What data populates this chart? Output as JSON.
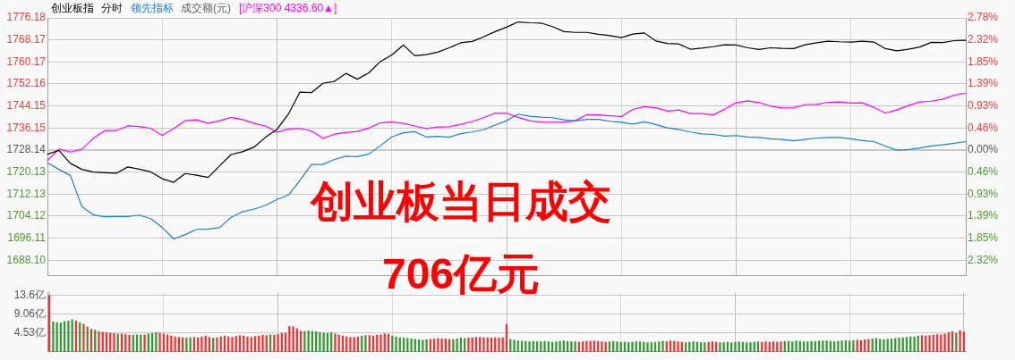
{
  "chart_data": [
    {
      "type": "line",
      "subtitle": "分时",
      "grid": true,
      "tick_labels": "y",
      "annotations": [
        "成交额(元)",
        "创业板当日成交",
        "706亿元"
      ],
      "categories": [
        null,
        null,
        null,
        null,
        null,
        null,
        null,
        null,
        null,
        null,
        null,
        null,
        null,
        null,
        null,
        null,
        null,
        null,
        null,
        null,
        null,
        null,
        null,
        null,
        null,
        null,
        null,
        null,
        null,
        null,
        null,
        null,
        null,
        null,
        null,
        null,
        null,
        null,
        null,
        null,
        null,
        null,
        null,
        null,
        null,
        null,
        null,
        null,
        null,
        null,
        null,
        null,
        null,
        null,
        null,
        null,
        null,
        null,
        null,
        null,
        null,
        null,
        null,
        null,
        null,
        null,
        null,
        null,
        null,
        null,
        null,
        null,
        null,
        null,
        null,
        null,
        null,
        null,
        null,
        null,
        null
      ],
      "ylim": [
        1682.4,
        1776.18
      ],
      "yticks": [
        1776.18,
        1768.17,
        1760.17,
        1752.16,
        1744.15,
        1736.15,
        1728.14,
        1720.13,
        1712.13,
        1704.12,
        1696.11,
        {
          "value": 1688.1,
          "label": "1688.10"
        }
      ],
      "y2lim": [
        -2.65,
        2.78
      ],
      "y2ticks": [
        {
          "value": 2.78,
          "label": "2.78%"
        },
        {
          "value": 2.32,
          "label": "2.32%"
        },
        {
          "value": 1.85,
          "label": "1.85%"
        },
        {
          "value": 1.39,
          "label": "1.39%"
        },
        {
          "value": 0.93,
          "label": "0.93%"
        },
        {
          "value": 0.46,
          "label": "0.46%"
        },
        {
          "value": 0,
          "label": "0.00%"
        },
        {
          "value": -0.46,
          "label": "0.46%"
        },
        {
          "value": -0.93,
          "label": "0.93%"
        },
        {
          "value": -1.39,
          "label": "1.39%"
        },
        {
          "value": -1.85,
          "label": "1.85%"
        },
        {
          "value": -2.32,
          "label": "2.32%"
        }
      ],
      "series": [
        {
          "name": "创业板指",
          "color": "#000000",
          "values": [
            1726.6,
            1728.0,
            1723.3,
            1721.1,
            1720.1,
            1719.9,
            1719.7,
            1722.0,
            1721.2,
            1720.2,
            1717.7,
            1716.4,
            1719.6,
            1719.0,
            1718.2,
            1722.4,
            1726.5,
            1727.5,
            1729.2,
            1732.8,
            1735.6,
            1741.3,
            1749.2,
            1749.0,
            1752.4,
            1753.1,
            1756.0,
            1753.9,
            1756.2,
            1760.3,
            1762.7,
            1766.3,
            1762.4,
            1762.8,
            1763.7,
            1765.3,
            1767.1,
            1767.6,
            1769.3,
            1771.2,
            1772.8,
            1774.7,
            1774.4,
            1774.3,
            1773.0,
            1771.2,
            1770.9,
            1770.9,
            1770.2,
            1769.7,
            1769.0,
            1770.3,
            1770.7,
            1767.8,
            1766.9,
            1766.7,
            1764.8,
            1765.2,
            1765.7,
            1766.4,
            1766.3,
            1765.3,
            1764.7,
            1765.3,
            1765.1,
            1765.0,
            1766.4,
            1767.1,
            1767.7,
            1767.5,
            1767.4,
            1767.7,
            1767.4,
            1765.0,
            1764.2,
            1764.8,
            1765.6,
            1767.3,
            1767.2,
            1767.9,
            1768.0
          ]
        },
        {
          "name": "领先指标",
          "color": "#1a7fd4",
          "values": [
            1723.5,
            1721.1,
            1718.9,
            1707.6,
            1704.6,
            1703.9,
            1704.0,
            1704.0,
            1704.5,
            1703.2,
            1700.0,
            1695.8,
            1697.4,
            1699.3,
            1699.4,
            1699.9,
            1703.7,
            1705.7,
            1706.7,
            1708.0,
            1710.2,
            1711.8,
            1717.1,
            1722.9,
            1722.9,
            1724.7,
            1725.9,
            1725.7,
            1726.7,
            1729.7,
            1732.9,
            1734.4,
            1734.8,
            1732.9,
            1733.1,
            1732.8,
            1734.1,
            1734.7,
            1735.5,
            1737.2,
            1738.8,
            1741.2,
            1740.4,
            1740.1,
            1739.9,
            1739.1,
            1738.7,
            1739.3,
            1739.3,
            1738.6,
            1738.2,
            1737.6,
            1738.4,
            1737.4,
            1736.2,
            1735.6,
            1734.7,
            1734.0,
            1733.8,
            1733.2,
            1733.4,
            1732.9,
            1732.7,
            1732.2,
            1732.0,
            1731.5,
            1732.0,
            1732.5,
            1732.7,
            1732.7,
            1732.2,
            1731.6,
            1731.2,
            1729.6,
            1728.1,
            1728.3,
            1728.9,
            1729.6,
            1730.0,
            1730.6,
            1731.2
          ]
        },
        {
          "name": "[沪深300 4336.60▲]",
          "color": "#ff00ff",
          "values": [
            1724.3,
            1728.5,
            1727.4,
            1728.4,
            1732.4,
            1735.2,
            1735.2,
            1736.9,
            1736.7,
            1736.0,
            1733.5,
            1735.9,
            1738.8,
            1739.1,
            1737.8,
            1738.8,
            1740.0,
            1739.2,
            1737.8,
            1736.9,
            1734.6,
            1735.8,
            1736.0,
            1735.1,
            1732.4,
            1733.9,
            1734.5,
            1734.9,
            1736.1,
            1738.0,
            1738.3,
            1737.8,
            1736.9,
            1735.9,
            1736.5,
            1736.6,
            1737.5,
            1738.5,
            1739.9,
            1741.5,
            1741.5,
            1740.0,
            1738.8,
            1738.3,
            1738.2,
            1738.2,
            1738.8,
            1741.0,
            1740.9,
            1740.6,
            1740.3,
            1742.9,
            1743.9,
            1743.5,
            1742.3,
            1742.7,
            1741.4,
            1741.4,
            1740.9,
            1743.0,
            1745.3,
            1746.0,
            1745.4,
            1744.1,
            1743.4,
            1743.5,
            1744.6,
            1744.7,
            1745.5,
            1745.6,
            1745.2,
            1745.3,
            1743.6,
            1741.6,
            1742.7,
            1744.3,
            1745.6,
            1745.9,
            1746.6,
            1748.1,
            1748.8
          ]
        }
      ]
    },
    {
      "type": "bar",
      "grid": true,
      "tick_labels": "y",
      "categories": [
        null,
        null,
        null,
        null,
        null,
        null,
        null,
        null,
        null,
        null,
        null,
        null,
        null,
        null,
        null,
        null,
        null,
        null,
        null,
        null,
        null,
        null,
        null,
        null,
        null,
        null,
        null,
        null,
        null,
        null,
        null,
        null,
        null,
        null,
        null,
        null,
        null,
        null,
        null,
        null,
        null,
        null,
        null,
        null,
        null,
        null,
        null,
        null,
        null,
        null,
        null,
        null,
        null,
        null,
        null,
        null,
        null,
        null,
        null,
        null,
        null,
        null,
        null,
        null,
        null,
        null,
        null,
        null,
        null,
        null,
        null,
        null,
        null,
        null,
        null,
        null,
        null,
        null,
        null,
        null,
        null,
        null,
        null,
        null,
        null,
        null,
        null,
        null,
        null,
        null,
        null,
        null,
        null,
        null,
        null,
        null,
        null,
        null,
        null,
        null,
        null,
        null,
        null,
        null,
        null,
        null,
        null,
        null,
        null,
        null,
        null,
        null,
        null,
        null,
        null,
        null,
        null,
        null,
        null,
        null,
        null,
        null,
        null,
        null,
        null,
        null,
        null,
        null,
        null,
        null,
        null,
        null,
        null,
        null,
        null,
        null,
        null,
        null,
        null,
        null,
        null,
        null,
        null,
        null,
        null,
        null,
        null,
        null,
        null,
        null,
        null,
        null,
        null,
        null,
        null,
        null,
        null,
        null,
        null,
        null,
        null,
        null,
        null,
        null,
        null,
        null,
        null,
        null,
        null,
        null,
        null,
        null,
        null,
        null,
        null,
        null,
        null,
        null,
        null,
        null,
        null,
        null,
        null,
        null,
        null,
        null,
        null,
        null,
        null,
        null,
        null,
        null,
        null,
        null,
        null,
        null,
        null,
        null,
        null,
        null,
        null,
        null,
        null,
        null,
        null,
        null,
        null,
        null,
        null,
        null,
        null,
        null,
        null,
        null,
        null,
        null,
        null,
        null,
        null,
        null,
        null,
        null,
        null,
        null,
        null,
        null,
        null,
        null,
        null,
        null,
        null,
        null,
        null,
        null,
        null,
        null,
        null,
        null,
        null,
        null,
        null
      ],
      "ylim": [
        0,
        14.3
      ],
      "yticks": [
        {
          "value": 4.53,
          "label": "4.53亿"
        },
        {
          "value": 9.06,
          "label": "9.06亿"
        },
        {
          "value": 13.6,
          "label": "13.6亿"
        }
      ],
      "values": [
        13.6,
        7.2,
        7.0,
        6.9,
        7.3,
        7.4,
        7.7,
        7.4,
        7.0,
        6.6,
        6.0,
        5.4,
        5.2,
        4.8,
        4.7,
        4.6,
        4.5,
        4.4,
        4.3,
        4.3,
        4.2,
        4.0,
        4.0,
        4.1,
        4.1,
        4.0,
        4.3,
        4.4,
        4.6,
        4.5,
        4.3,
        4.1,
        3.8,
        3.6,
        3.5,
        3.4,
        3.3,
        3.4,
        3.5,
        3.4,
        3.6,
        3.8,
        3.5,
        3.3,
        3.4,
        3.6,
        3.8,
        3.6,
        3.5,
        3.7,
        3.9,
        3.8,
        3.6,
        3.5,
        3.7,
        3.8,
        4.0,
        3.9,
        4.1,
        4.0,
        4.2,
        4.4,
        4.5,
        6.1,
        6.0,
        5.6,
        5.0,
        4.9,
        5.0,
        4.9,
        4.8,
        4.6,
        4.5,
        4.4,
        4.6,
        4.3,
        4.0,
        3.8,
        3.6,
        3.5,
        3.5,
        3.6,
        3.8,
        3.9,
        3.9,
        3.8,
        4.0,
        4.1,
        4.3,
        4.2,
        3.8,
        3.6,
        3.4,
        3.3,
        3.2,
        3.1,
        3.0,
        2.9,
        2.8,
        2.9,
        3.0,
        3.1,
        3.2,
        3.1,
        3.1,
        3.0,
        3.0,
        3.1,
        3.3,
        3.2,
        3.3,
        3.4,
        3.5,
        3.5,
        3.4,
        3.4,
        3.3,
        3.4,
        3.3,
        3.4,
        6.6,
        3.0,
        2.8,
        2.6,
        2.5,
        2.5,
        2.4,
        2.5,
        2.4,
        2.4,
        2.5,
        2.4,
        2.3,
        2.4,
        2.5,
        2.6,
        2.5,
        2.4,
        2.4,
        2.3,
        2.4,
        2.5,
        2.5,
        2.6,
        2.5,
        2.4,
        2.3,
        2.4,
        2.5,
        2.4,
        2.3,
        2.3,
        2.2,
        2.3,
        2.4,
        2.4,
        2.3,
        2.2,
        2.2,
        2.3,
        2.4,
        2.5,
        2.4,
        2.6,
        2.5,
        2.4,
        2.3,
        2.2,
        2.3,
        2.4,
        2.3,
        2.2,
        2.2,
        2.3,
        2.4,
        2.3,
        2.2,
        2.2,
        2.3,
        2.2,
        2.3,
        2.4,
        2.3,
        2.2,
        2.2,
        2.3,
        2.4,
        2.3,
        2.4,
        2.3,
        2.4,
        2.3,
        2.4,
        2.5,
        2.5,
        2.4,
        2.6,
        2.5,
        2.4,
        2.4,
        2.5,
        2.5,
        2.6,
        2.6,
        2.6,
        2.5,
        2.4,
        2.5,
        2.6,
        2.7,
        2.6,
        2.7,
        2.8,
        2.7,
        2.9,
        3.0,
        3.1,
        3.2,
        3.0,
        2.9,
        3.0,
        3.1,
        3.2,
        3.3,
        3.4,
        3.5,
        3.6,
        3.6,
        3.8,
        3.9,
        3.8,
        3.9,
        4.0,
        4.2,
        4.1,
        4.3,
        4.6,
        4.8,
        4.4,
        5.1,
        4.7
      ],
      "colors": [
        "#f03232",
        "#339933",
        "#339933",
        "#339933",
        "#339933",
        "#339933",
        "#339933",
        "#f03232",
        "#339933",
        "#f03232",
        "#339933",
        "#f03232",
        "#339933",
        "#f03232",
        "#f03232",
        "#f03232",
        "#f03232",
        "#f03232",
        "#339933",
        "#f03232",
        "#f03232",
        "#f03232",
        "#339933",
        "#339933",
        "#339933",
        "#f03232",
        "#339933",
        "#339933",
        "#339933",
        "#f03232",
        "#f03232",
        "#f03232",
        "#f03232",
        "#f03232",
        "#f03232",
        "#f03232",
        "#339933",
        "#339933",
        "#f03232",
        "#f03232",
        "#f03232",
        "#f03232",
        "#f03232",
        "#339933",
        "#f03232",
        "#f03232",
        "#f03232",
        "#f03232",
        "#f03232",
        "#f03232",
        "#f03232",
        "#f03232",
        "#f03232",
        "#f03232",
        "#f03232",
        "#f03232",
        "#f03232",
        "#f03232",
        "#339933",
        "#f03232",
        "#f03232",
        "#f03232",
        "#f03232",
        "#f03232",
        "#f03232",
        "#f03232",
        "#f03232",
        "#339933",
        "#339933",
        "#339933",
        "#339933",
        "#339933",
        "#339933",
        "#339933",
        "#339933",
        "#f03232",
        "#f03232",
        "#f03232",
        "#f03232",
        "#f03232",
        "#f03232",
        "#f03232",
        "#339933",
        "#339933",
        "#f03232",
        "#f03232",
        "#f03232",
        "#f03232",
        "#f03232",
        "#f03232",
        "#339933",
        "#339933",
        "#339933",
        "#339933",
        "#339933",
        "#339933",
        "#339933",
        "#339933",
        "#339933",
        "#339933",
        "#f03232",
        "#f03232",
        "#f03232",
        "#f03232",
        "#f03232",
        "#f03232",
        "#339933",
        "#339933",
        "#339933",
        "#339933",
        "#f03232",
        "#f03232",
        "#f03232",
        "#f03232",
        "#f03232",
        "#f03232",
        "#f03232",
        "#f03232",
        "#f03232",
        "#f03232",
        "#f03232",
        "#339933",
        "#339933",
        "#339933",
        "#339933",
        "#339933",
        "#339933",
        "#339933",
        "#339933",
        "#339933",
        "#339933",
        "#339933",
        "#339933",
        "#339933",
        "#339933",
        "#339933",
        "#339933",
        "#339933",
        "#339933",
        "#f03232",
        "#f03232",
        "#f03232",
        "#f03232",
        "#f03232",
        "#f03232",
        "#f03232",
        "#f03232",
        "#339933",
        "#339933",
        "#339933",
        "#339933",
        "#339933",
        "#339933",
        "#339933",
        "#339933",
        "#339933",
        "#339933",
        "#339933",
        "#339933",
        "#339933",
        "#339933",
        "#339933",
        "#f03232",
        "#f03232",
        "#f03232",
        "#f03232",
        "#f03232",
        "#339933",
        "#339933",
        "#339933",
        "#339933",
        "#339933",
        "#339933",
        "#f03232",
        "#f03232",
        "#f03232",
        "#339933",
        "#339933",
        "#339933",
        "#339933",
        "#339933",
        "#339933",
        "#339933",
        "#339933",
        "#339933",
        "#339933",
        "#339933",
        "#f03232",
        "#f03232",
        "#f03232",
        "#f03232",
        "#f03232",
        "#f03232",
        "#339933",
        "#339933",
        "#339933",
        "#339933",
        "#339933",
        "#339933",
        "#339933",
        "#339933",
        "#339933",
        "#339933",
        "#339933",
        "#339933",
        "#339933",
        "#339933",
        "#339933",
        "#339933",
        "#339933",
        "#339933",
        "#339933",
        "#f03232",
        "#f03232",
        "#f03232",
        "#f03232",
        "#339933",
        "#339933",
        "#339933",
        "#339933",
        "#339933",
        "#339933",
        "#339933",
        "#339933",
        "#339933",
        "#339933",
        "#339933",
        "#339933",
        "#339933",
        "#f03232",
        "#f03232",
        "#f03232",
        "#f03232",
        "#f03232",
        "#f03232",
        "#f03232",
        "#f03232",
        "#f03232",
        "#339933",
        "#f03232",
        "#f03232"
      ]
    }
  ]
}
